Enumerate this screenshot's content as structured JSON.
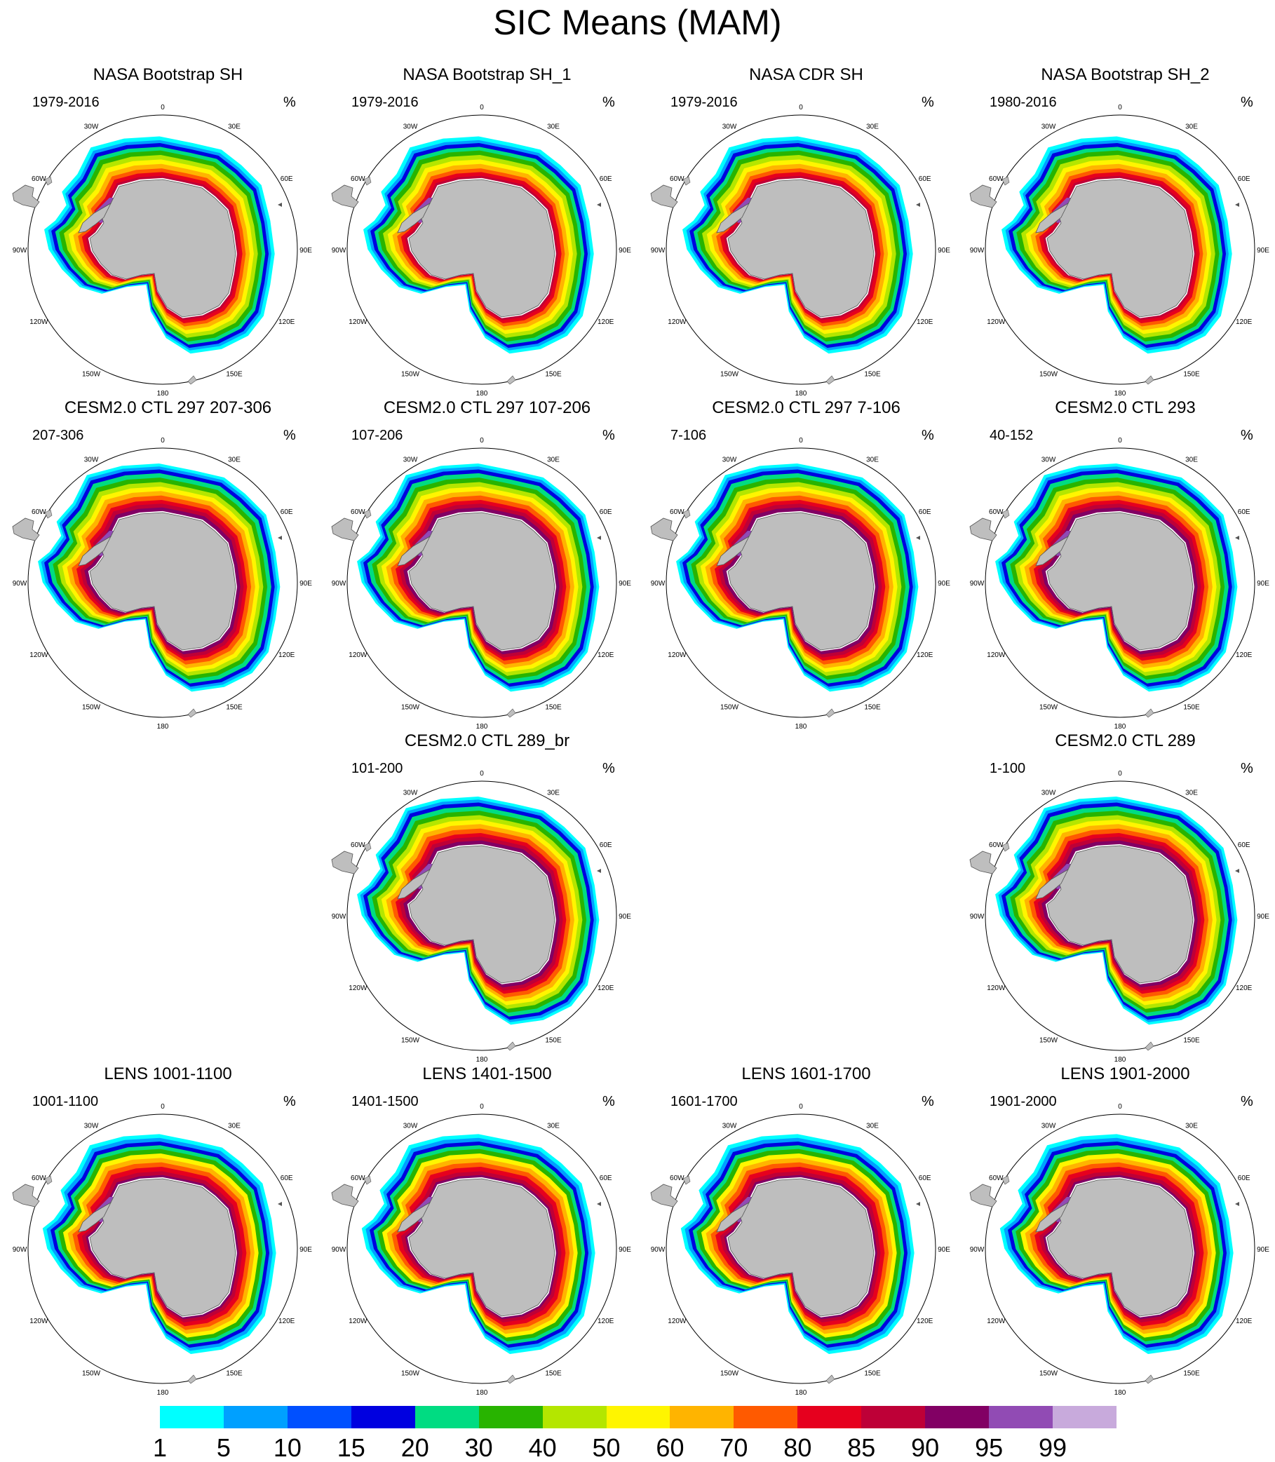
{
  "title": "SIC Means (MAM)",
  "units": "%",
  "longitude_labels": [
    "0",
    "30E",
    "60E",
    "90E",
    "120E",
    "150E",
    "180",
    "150W",
    "120W",
    "90W",
    "60W",
    "30W"
  ],
  "panels": [
    {
      "title": "NASA Bootstrap SH",
      "years": "1979-2016",
      "style": "obs"
    },
    {
      "title": "NASA Bootstrap SH_1",
      "years": "1979-2016",
      "style": "obs"
    },
    {
      "title": "NASA CDR SH",
      "years": "1979-2016",
      "style": "obs"
    },
    {
      "title": "NASA Bootstrap SH_2",
      "years": "1980-2016",
      "style": "obs"
    },
    {
      "title": "CESM2.0 CTL 297 207-306",
      "years": "207-306",
      "style": "cesm"
    },
    {
      "title": "CESM2.0 CTL 297 107-206",
      "years": "107-206",
      "style": "cesm"
    },
    {
      "title": "CESM2.0 CTL 297 7-106",
      "years": "7-106",
      "style": "cesm"
    },
    {
      "title": "CESM2.0 CTL 293",
      "years": "40-152",
      "style": "cesm"
    },
    {
      "title": "CESM2.0 CTL 289_br",
      "years": "101-200",
      "style": "cesm"
    },
    {
      "title": "CESM2.0 CTL 289",
      "years": "1-100",
      "style": "cesm"
    },
    {
      "title": "LENS 1001-1100",
      "years": "1001-1100",
      "style": "lens"
    },
    {
      "title": "LENS 1401-1500",
      "years": "1401-1500",
      "style": "lens"
    },
    {
      "title": "LENS 1601-1700",
      "years": "1601-1700",
      "style": "lens"
    },
    {
      "title": "LENS 1901-2000",
      "years": "1901-2000",
      "style": "lens"
    }
  ],
  "colorbar": {
    "labels": [
      "1",
      "5",
      "10",
      "15",
      "20",
      "30",
      "40",
      "50",
      "60",
      "70",
      "80",
      "85",
      "90",
      "95",
      "99"
    ],
    "colors": [
      "#00ffff",
      "#00a0ff",
      "#0050ff",
      "#0000e0",
      "#00dc82",
      "#28b400",
      "#b4e600",
      "#fff500",
      "#ffb400",
      "#ff5a00",
      "#e6001e",
      "#be0037",
      "#820064",
      "#914bb4",
      "#c8aadc"
    ]
  },
  "colors": {
    "land": "#bebebe",
    "open_ice_edge": "#ffffff"
  }
}
